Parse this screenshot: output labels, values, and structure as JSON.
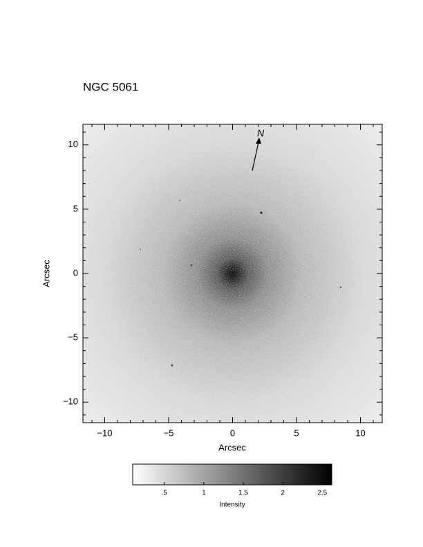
{
  "chart_data": {
    "type": "image",
    "title": "NGC 5061",
    "xlabel": "Arcsec",
    "ylabel": "Arcsec",
    "xlim": [
      -11.7,
      11.7
    ],
    "ylim": [
      -11.6,
      11.6
    ],
    "xticks": [
      {
        "value": -10,
        "label": "−10"
      },
      {
        "value": -5,
        "label": "−5"
      },
      0,
      5,
      10
    ],
    "yticks": [
      {
        "value": -10,
        "label": "−10"
      },
      {
        "value": -5,
        "label": "−5"
      },
      0,
      5,
      10
    ],
    "xminorticks": [
      -11,
      -9,
      -8,
      -7,
      -6,
      -4,
      -3,
      -2,
      -1,
      1,
      2,
      3,
      4,
      6,
      7,
      8,
      9,
      11
    ],
    "yminorticks": [
      -11,
      -9,
      -8,
      -7,
      -6,
      -4,
      -3,
      -2,
      -1,
      1,
      2,
      3,
      4,
      6,
      7,
      8,
      9,
      11
    ],
    "annotation": "N",
    "colorbar": {
      "label": "Intensity",
      "range": [
        0.1,
        2.62
      ],
      "ticks": [
        {
          "value": 0.5,
          "label": ".5"
        },
        1,
        1.5,
        2,
        2.5
      ]
    }
  }
}
